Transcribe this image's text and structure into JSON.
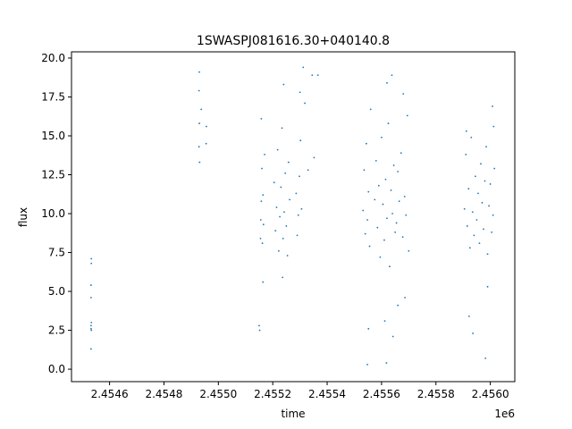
{
  "chart_data": {
    "type": "scatter",
    "title": "1SWASPJ081616.30+040140.8",
    "xlabel": "time",
    "ylabel": "flux",
    "x_offset_label": "1e6",
    "xlim": [
      2454460,
      2456090
    ],
    "ylim": [
      -0.8,
      20.4
    ],
    "x_ticks": [
      2454600,
      2454800,
      2455000,
      2455200,
      2455400,
      2455600,
      2455800,
      2456000
    ],
    "x_tick_labels": [
      "2.4546",
      "2.4548",
      "2.4550",
      "2.4552",
      "2.4554",
      "2.4556",
      "2.4558",
      "2.4560"
    ],
    "y_ticks": [
      0.0,
      2.5,
      5.0,
      7.5,
      10.0,
      12.5,
      15.0,
      17.5,
      20.0
    ],
    "y_tick_labels": [
      "0.0",
      "2.5",
      "5.0",
      "7.5",
      "10.0",
      "12.5",
      "15.0",
      "17.5",
      "20.0"
    ],
    "grid": false,
    "marker_color": "#1f77b4",
    "series": [
      {
        "values": [
          [
            2454532,
            2.6
          ],
          [
            2454532,
            2.8
          ],
          [
            2454533,
            2.5
          ],
          [
            2454533,
            3.0
          ],
          [
            2454532,
            5.4
          ],
          [
            2454533,
            6.8
          ],
          [
            2454532,
            1.3
          ],
          [
            2454532,
            4.6
          ],
          [
            2454533,
            7.1
          ],
          [
            2454929,
            17.9
          ],
          [
            2454930,
            15.8
          ],
          [
            2454929,
            14.3
          ],
          [
            2454937,
            16.7
          ],
          [
            2454955,
            14.5
          ],
          [
            2454956,
            15.6
          ],
          [
            2454931,
            13.3
          ],
          [
            2454930,
            19.1
          ],
          [
            2455150,
            2.8
          ],
          [
            2455152,
            2.5
          ],
          [
            2455155,
            8.4
          ],
          [
            2455156,
            9.6
          ],
          [
            2455158,
            10.8
          ],
          [
            2455160,
            12.9
          ],
          [
            2455162,
            8.1
          ],
          [
            2455164,
            11.2
          ],
          [
            2455166,
            9.3
          ],
          [
            2455170,
            13.8
          ],
          [
            2455158,
            16.1
          ],
          [
            2455164,
            5.6
          ],
          [
            2455205,
            12.0
          ],
          [
            2455210,
            8.9
          ],
          [
            2455214,
            10.4
          ],
          [
            2455218,
            14.1
          ],
          [
            2455222,
            7.6
          ],
          [
            2455226,
            9.8
          ],
          [
            2455230,
            11.7
          ],
          [
            2455234,
            15.5
          ],
          [
            2455238,
            8.4
          ],
          [
            2455242,
            10.1
          ],
          [
            2455246,
            12.6
          ],
          [
            2455250,
            9.2
          ],
          [
            2455254,
            7.3
          ],
          [
            2455258,
            13.3
          ],
          [
            2455262,
            10.9
          ],
          [
            2455240,
            18.3
          ],
          [
            2455236,
            5.9
          ],
          [
            2455286,
            11.3
          ],
          [
            2455290,
            8.6
          ],
          [
            2455294,
            9.9
          ],
          [
            2455298,
            12.4
          ],
          [
            2455302,
            14.7
          ],
          [
            2455306,
            10.3
          ],
          [
            2455300,
            17.8
          ],
          [
            2455312,
            19.4
          ],
          [
            2455318,
            17.1
          ],
          [
            2455330,
            12.8
          ],
          [
            2455345,
            18.9
          ],
          [
            2455366,
            18.9
          ],
          [
            2455352,
            13.6
          ],
          [
            2455532,
            10.2
          ],
          [
            2455536,
            12.8
          ],
          [
            2455540,
            8.7
          ],
          [
            2455544,
            14.5
          ],
          [
            2455548,
            9.6
          ],
          [
            2455552,
            11.4
          ],
          [
            2455556,
            7.9
          ],
          [
            2455548,
            0.3
          ],
          [
            2455552,
            2.6
          ],
          [
            2455560,
            16.7
          ],
          [
            2455575,
            10.9
          ],
          [
            2455580,
            13.4
          ],
          [
            2455585,
            9.1
          ],
          [
            2455590,
            11.8
          ],
          [
            2455595,
            7.2
          ],
          [
            2455600,
            14.9
          ],
          [
            2455605,
            10.6
          ],
          [
            2455610,
            8.3
          ],
          [
            2455615,
            12.2
          ],
          [
            2455620,
            9.7
          ],
          [
            2455625,
            15.8
          ],
          [
            2455630,
            6.6
          ],
          [
            2455635,
            11.5
          ],
          [
            2455640,
            10.0
          ],
          [
            2455645,
            13.1
          ],
          [
            2455650,
            8.8
          ],
          [
            2455655,
            9.4
          ],
          [
            2455660,
            12.7
          ],
          [
            2455620,
            18.4
          ],
          [
            2455638,
            18.9
          ],
          [
            2455612,
            3.1
          ],
          [
            2455642,
            2.1
          ],
          [
            2455618,
            0.4
          ],
          [
            2455665,
            10.8
          ],
          [
            2455672,
            13.9
          ],
          [
            2455678,
            8.5
          ],
          [
            2455685,
            11.1
          ],
          [
            2455690,
            9.9
          ],
          [
            2455695,
            16.3
          ],
          [
            2455700,
            7.6
          ],
          [
            2455680,
            17.7
          ],
          [
            2455686,
            4.6
          ],
          [
            2455660,
            4.1
          ],
          [
            2455905,
            10.3
          ],
          [
            2455910,
            13.8
          ],
          [
            2455915,
            9.2
          ],
          [
            2455920,
            11.6
          ],
          [
            2455925,
            7.8
          ],
          [
            2455930,
            14.9
          ],
          [
            2455935,
            10.1
          ],
          [
            2455940,
            8.6
          ],
          [
            2455945,
            12.4
          ],
          [
            2455950,
            9.6
          ],
          [
            2455912,
            15.3
          ],
          [
            2455922,
            3.4
          ],
          [
            2455936,
            2.3
          ],
          [
            2455955,
            11.3
          ],
          [
            2455960,
            8.1
          ],
          [
            2455965,
            13.2
          ],
          [
            2455970,
            10.7
          ],
          [
            2455975,
            9.0
          ],
          [
            2455980,
            12.1
          ],
          [
            2455985,
            14.3
          ],
          [
            2455990,
            7.4
          ],
          [
            2455995,
            10.5
          ],
          [
            2456000,
            11.9
          ],
          [
            2456005,
            8.8
          ],
          [
            2456010,
            9.9
          ],
          [
            2456015,
            12.9
          ],
          [
            2456008,
            16.9
          ],
          [
            2456012,
            15.6
          ],
          [
            2455982,
            0.7
          ],
          [
            2455990,
            5.3
          ]
        ]
      }
    ]
  }
}
